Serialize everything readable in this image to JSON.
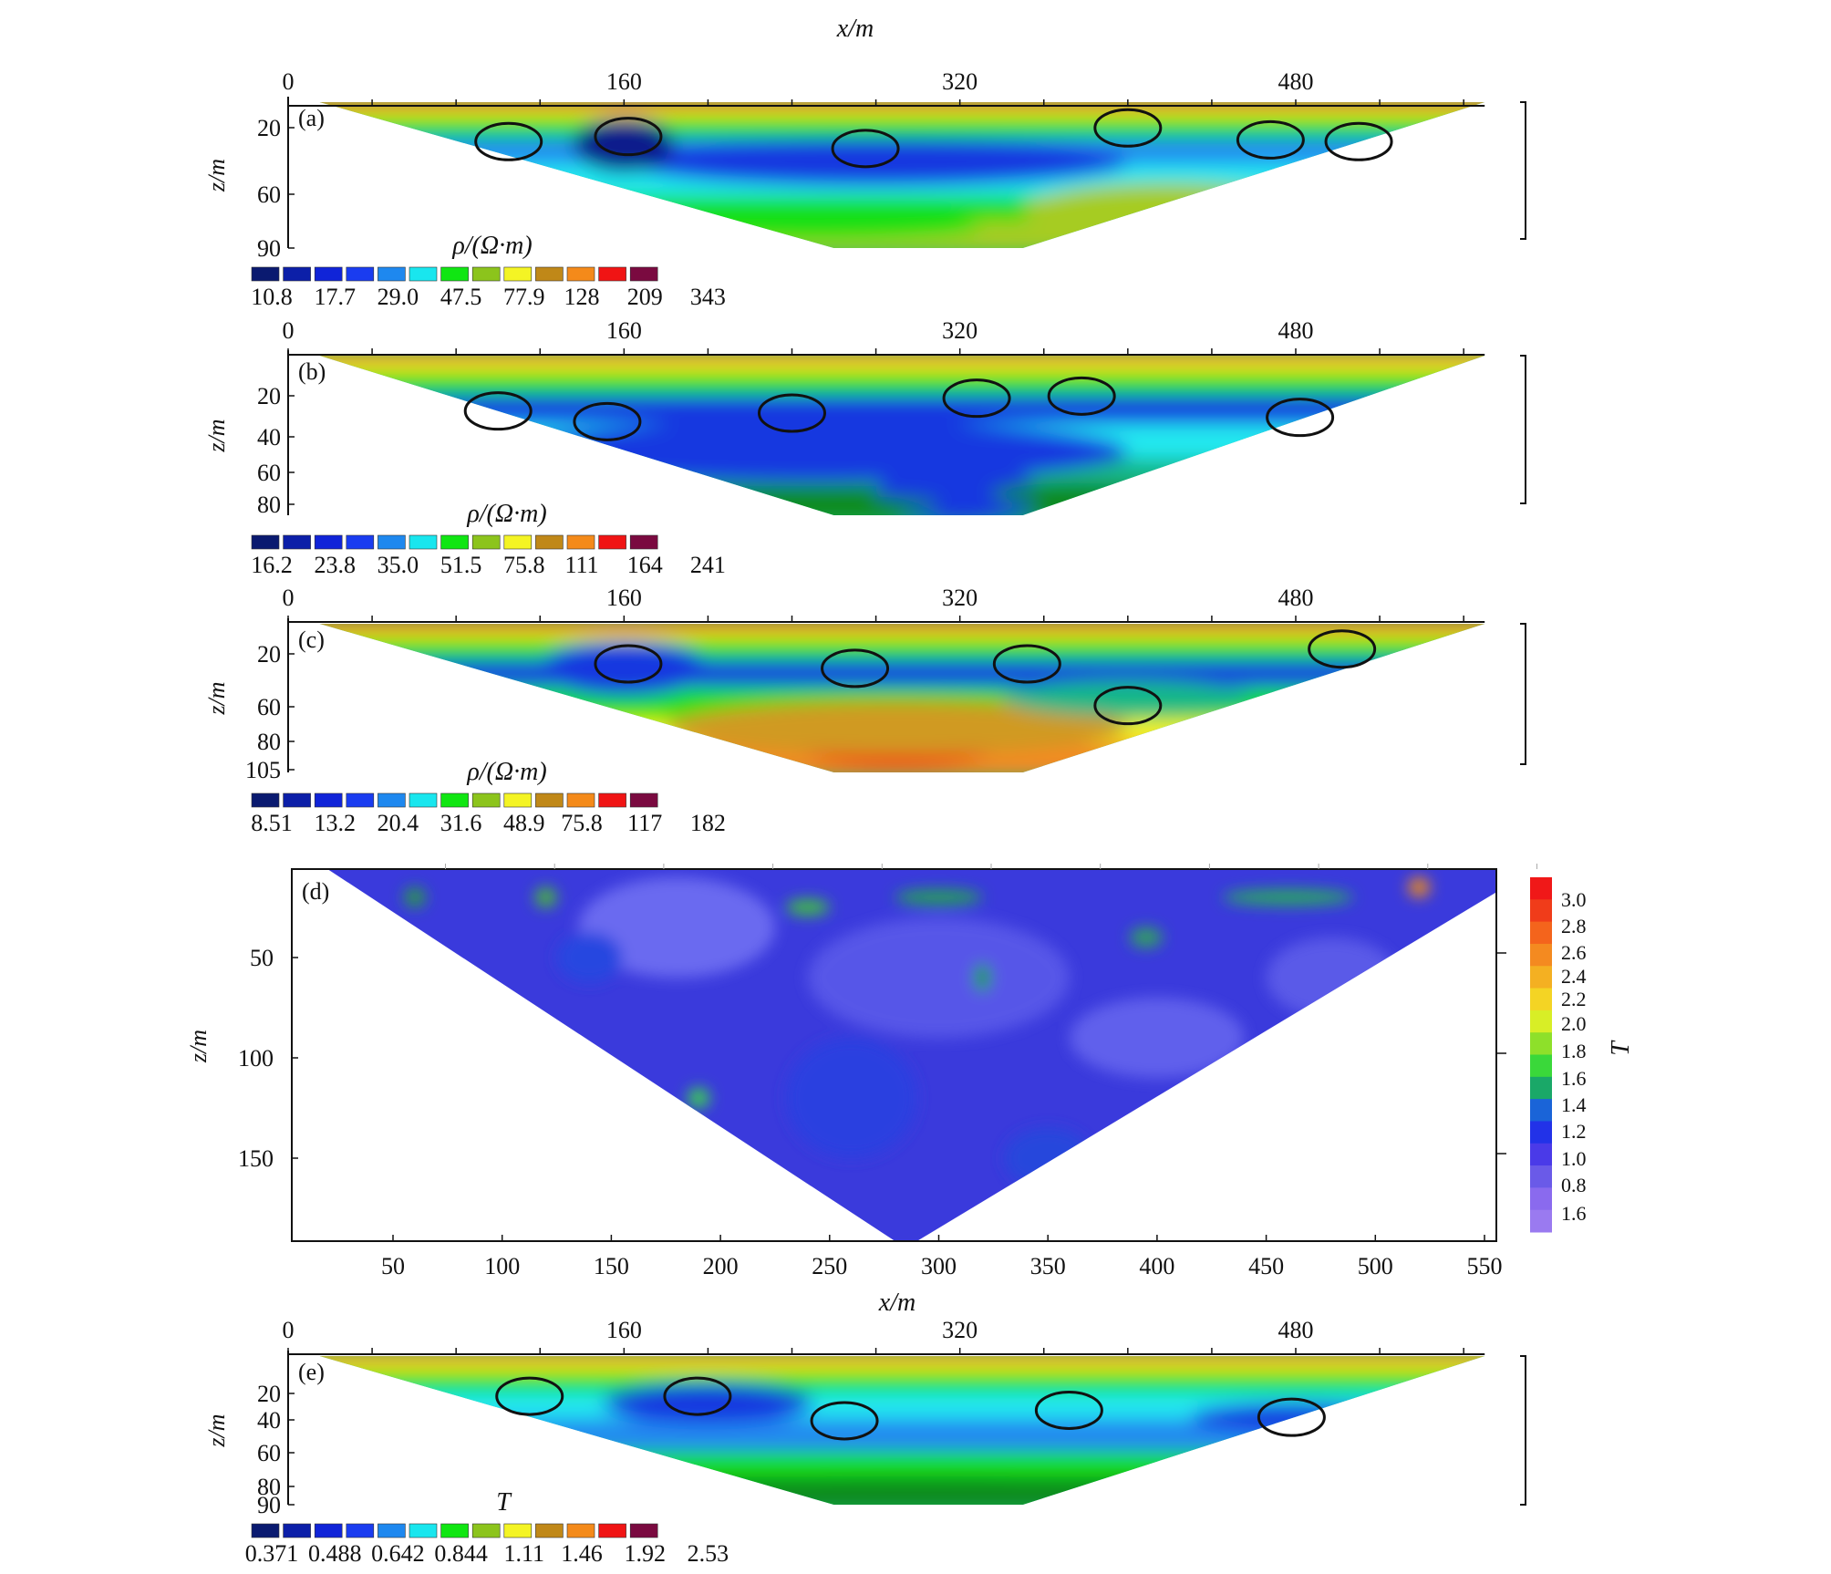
{
  "figure": {
    "top_axis_label": "x/m",
    "bottom_axis_label": "x/m"
  },
  "chart_data": [
    {
      "id": "a",
      "type": "heatmap",
      "panel_label": "(a)",
      "xlabel": "x/m",
      "ylabel": "z/m",
      "x_ticks": [
        0,
        160,
        320,
        480
      ],
      "xlim": [
        0,
        570
      ],
      "y_ticks": [
        20,
        60,
        90
      ],
      "ylim": [
        5,
        90
      ],
      "legend_title": "ρ/(Ω·m)",
      "legend_values": [
        "10.8",
        "17.7",
        "29.0",
        "47.5",
        "77.9",
        "128",
        "209",
        "343"
      ],
      "anomalies": [
        {
          "x": 105,
          "z": 28
        },
        {
          "x": 162,
          "z": 25
        },
        {
          "x": 275,
          "z": 32
        },
        {
          "x": 400,
          "z": 20
        },
        {
          "x": 468,
          "z": 27
        },
        {
          "x": 510,
          "z": 28
        }
      ]
    },
    {
      "id": "b",
      "type": "heatmap",
      "panel_label": "(b)",
      "xlabel": "x/m",
      "ylabel": "z/m",
      "x_ticks": [
        0,
        160,
        320,
        480
      ],
      "xlim": [
        0,
        570
      ],
      "y_ticks": [
        20,
        40,
        60,
        80
      ],
      "ylim": [
        5,
        80
      ],
      "legend_title": "ρ/(Ω·m)",
      "legend_values": [
        "16.2",
        "23.8",
        "35.0",
        "51.5",
        "75.8",
        "111",
        "164",
        "241"
      ],
      "anomalies": [
        {
          "x": 100,
          "z": 31
        },
        {
          "x": 152,
          "z": 36
        },
        {
          "x": 240,
          "z": 32
        },
        {
          "x": 328,
          "z": 25
        },
        {
          "x": 378,
          "z": 24
        },
        {
          "x": 482,
          "z": 34
        }
      ]
    },
    {
      "id": "c",
      "type": "heatmap",
      "panel_label": "(c)",
      "xlabel": "x/m",
      "ylabel": "z/m",
      "x_ticks": [
        0,
        160,
        320,
        480
      ],
      "xlim": [
        0,
        570
      ],
      "y_ticks": [
        20,
        60,
        80,
        105
      ],
      "ylim": [
        5,
        105
      ],
      "legend_title": "ρ/(Ω·m)",
      "legend_values": [
        "8.51",
        "13.2",
        "20.4",
        "31.6",
        "48.9",
        "75.8",
        "117",
        "182"
      ],
      "anomalies": [
        {
          "x": 162,
          "z": 32
        },
        {
          "x": 270,
          "z": 35
        },
        {
          "x": 352,
          "z": 32
        },
        {
          "x": 400,
          "z": 60
        },
        {
          "x": 502,
          "z": 22
        }
      ]
    },
    {
      "id": "d",
      "type": "heatmap",
      "panel_label": "(d)",
      "xlabel": "x/m",
      "ylabel": "z/m",
      "x_ticks": [
        50,
        100,
        150,
        200,
        250,
        300,
        350,
        400,
        450,
        500,
        550
      ],
      "xlim": [
        3,
        575
      ],
      "y_ticks": [
        50,
        100,
        150
      ],
      "ylim": [
        8,
        190
      ],
      "colorbar_label": "T",
      "colorbar_values": [
        "3.0",
        "2.8",
        "2.6",
        "2.4",
        "2.2",
        "2.0",
        "1.8",
        "1.6",
        "1.4",
        "1.2",
        "1.0",
        "0.8",
        "1.6"
      ]
    },
    {
      "id": "e",
      "type": "heatmap",
      "panel_label": "(e)",
      "xlabel": "x/m",
      "ylabel": "z/m",
      "x_ticks": [
        0,
        160,
        320,
        480
      ],
      "xlim": [
        0,
        570
      ],
      "y_ticks": [
        20,
        40,
        60,
        80,
        90
      ],
      "ylim": [
        5,
        90
      ],
      "legend_title": "T",
      "legend_values": [
        "0.371",
        "0.488",
        "0.642",
        "0.844",
        "1.11",
        "1.46",
        "1.92",
        "2.53"
      ],
      "anomalies": [
        {
          "x": 115,
          "z": 28
        },
        {
          "x": 195,
          "z": 28
        },
        {
          "x": 265,
          "z": 42
        },
        {
          "x": 372,
          "z": 36
        },
        {
          "x": 478,
          "z": 40
        }
      ]
    }
  ]
}
